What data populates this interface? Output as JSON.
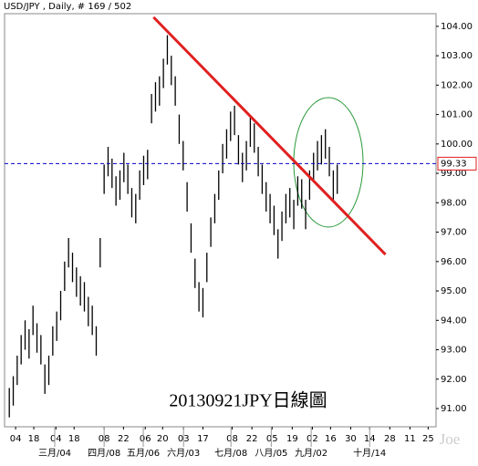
{
  "chart_data": {
    "type": "ohlc",
    "title": "USD/JPY , Daily, # 169 / 502",
    "annotation": "20130921JPY日線圖",
    "watermark": "Joe",
    "color": "#000000",
    "high": [
      91.7,
      92.1,
      92.8,
      93.5,
      94.0,
      93.7,
      94.5,
      93.9,
      93.5,
      92.5,
      92.8,
      93.8,
      94.3,
      95.0,
      96.0,
      96.8,
      96.3,
      95.8,
      95.5,
      95.3,
      94.8,
      94.5,
      93.8,
      96.8,
      99.3,
      99.9,
      99.5,
      98.9,
      99.1,
      99.7,
      99.3,
      98.5,
      98.3,
      99.1,
      99.6,
      99.8,
      101.7,
      102.1,
      102.3,
      102.9,
      103.7,
      103.0,
      102.3,
      101.0,
      100.1,
      98.7,
      97.3,
      96.1,
      95.3,
      95.1,
      96.3,
      97.5,
      98.3,
      99.1,
      100.0,
      100.5,
      101.1,
      101.3,
      100.3,
      99.7,
      100.1,
      100.9,
      100.7,
      99.9,
      99.3,
      98.7,
      98.3,
      97.9,
      97.1,
      97.7,
      98.3,
      98.5,
      98.1,
      98.9,
      98.8,
      98.1,
      99.1,
      99.7,
      100.1,
      100.3,
      100.5,
      99.9,
      99.1,
      99.3
    ],
    "low": [
      90.7,
      91.1,
      91.8,
      92.5,
      93.0,
      92.7,
      93.5,
      92.9,
      92.5,
      91.5,
      91.8,
      92.8,
      93.3,
      94.0,
      95.0,
      95.8,
      95.3,
      94.8,
      94.5,
      94.3,
      93.8,
      93.5,
      92.8,
      95.8,
      98.3,
      98.9,
      98.5,
      97.9,
      98.1,
      98.7,
      98.3,
      97.5,
      97.3,
      98.1,
      98.6,
      98.8,
      100.7,
      101.1,
      101.3,
      101.9,
      102.7,
      102.0,
      101.3,
      100.0,
      99.1,
      97.7,
      96.3,
      95.1,
      94.3,
      94.1,
      95.3,
      96.5,
      97.3,
      98.1,
      99.0,
      99.5,
      100.1,
      100.3,
      99.3,
      98.7,
      99.1,
      99.9,
      99.7,
      98.9,
      98.3,
      97.7,
      97.3,
      96.9,
      96.1,
      96.7,
      97.3,
      97.5,
      97.1,
      97.9,
      97.8,
      97.1,
      98.1,
      98.7,
      99.1,
      99.3,
      99.5,
      98.9,
      98.1,
      98.3
    ],
    "xlim": [
      -1.2,
      108
    ],
    "xticks": [
      {
        "value": 1.6,
        "label": "04"
      },
      {
        "value": 6.2,
        "label": "18"
      },
      {
        "value": 11.8,
        "label": "04"
      },
      {
        "value": 16.4,
        "label": "18"
      },
      {
        "value": 24.0,
        "label": "08"
      },
      {
        "value": 28.9,
        "label": "22"
      },
      {
        "value": 34.4,
        "label": "06"
      },
      {
        "value": 38.8,
        "label": "20"
      },
      {
        "value": 44.1,
        "label": "03"
      },
      {
        "value": 49.0,
        "label": "17"
      },
      {
        "value": 56.4,
        "label": "08"
      },
      {
        "value": 61.4,
        "label": "22"
      },
      {
        "value": 66.5,
        "label": "05"
      },
      {
        "value": 71.6,
        "label": "19"
      },
      {
        "value": 76.7,
        "label": "02"
      },
      {
        "value": 81.3,
        "label": "16"
      },
      {
        "value": 86.4,
        "label": "30"
      },
      {
        "value": 91.2,
        "label": "14"
      },
      {
        "value": 96.3,
        "label": "28"
      },
      {
        "value": 101.4,
        "label": "11"
      },
      {
        "value": 106.0,
        "label": "25"
      }
    ],
    "month_ticks": [
      {
        "value": 11.5,
        "label": "三月/04"
      },
      {
        "value": 24.0,
        "label": "四月/08"
      },
      {
        "value": 33.9,
        "label": "五月/06"
      },
      {
        "value": 44.1,
        "label": "六月/03"
      },
      {
        "value": 56.1,
        "label": "七月/08"
      },
      {
        "value": 66.3,
        "label": "八月/05"
      },
      {
        "value": 76.4,
        "label": "九月/02"
      },
      {
        "value": 91.2,
        "label": "十月/14"
      }
    ],
    "ylim": [
      90.38,
      104.43
    ],
    "yticks": [
      {
        "value": 91,
        "label": "91.00"
      },
      {
        "value": 92,
        "label": "92.00"
      },
      {
        "value": 93,
        "label": "93.00"
      },
      {
        "value": 94,
        "label": "94.00"
      },
      {
        "value": 95,
        "label": "95.00"
      },
      {
        "value": 96,
        "label": "96.00"
      },
      {
        "value": 97,
        "label": "97.00"
      },
      {
        "value": 98,
        "label": "98.00"
      },
      {
        "value": 99,
        "label": "99.00"
      },
      {
        "value": 100,
        "label": "100.00"
      },
      {
        "value": 101,
        "label": "101.00"
      },
      {
        "value": 102,
        "label": "102.00"
      },
      {
        "value": 103,
        "label": "103.00"
      },
      {
        "value": 104,
        "label": "104.00"
      }
    ],
    "hline": {
      "value": 99.33,
      "color": "#0000cc"
    },
    "trendline": {
      "color": "#e02020",
      "x": [
        36.5,
        95.2
      ],
      "values": [
        104.31,
        96.24
      ]
    }
  }
}
